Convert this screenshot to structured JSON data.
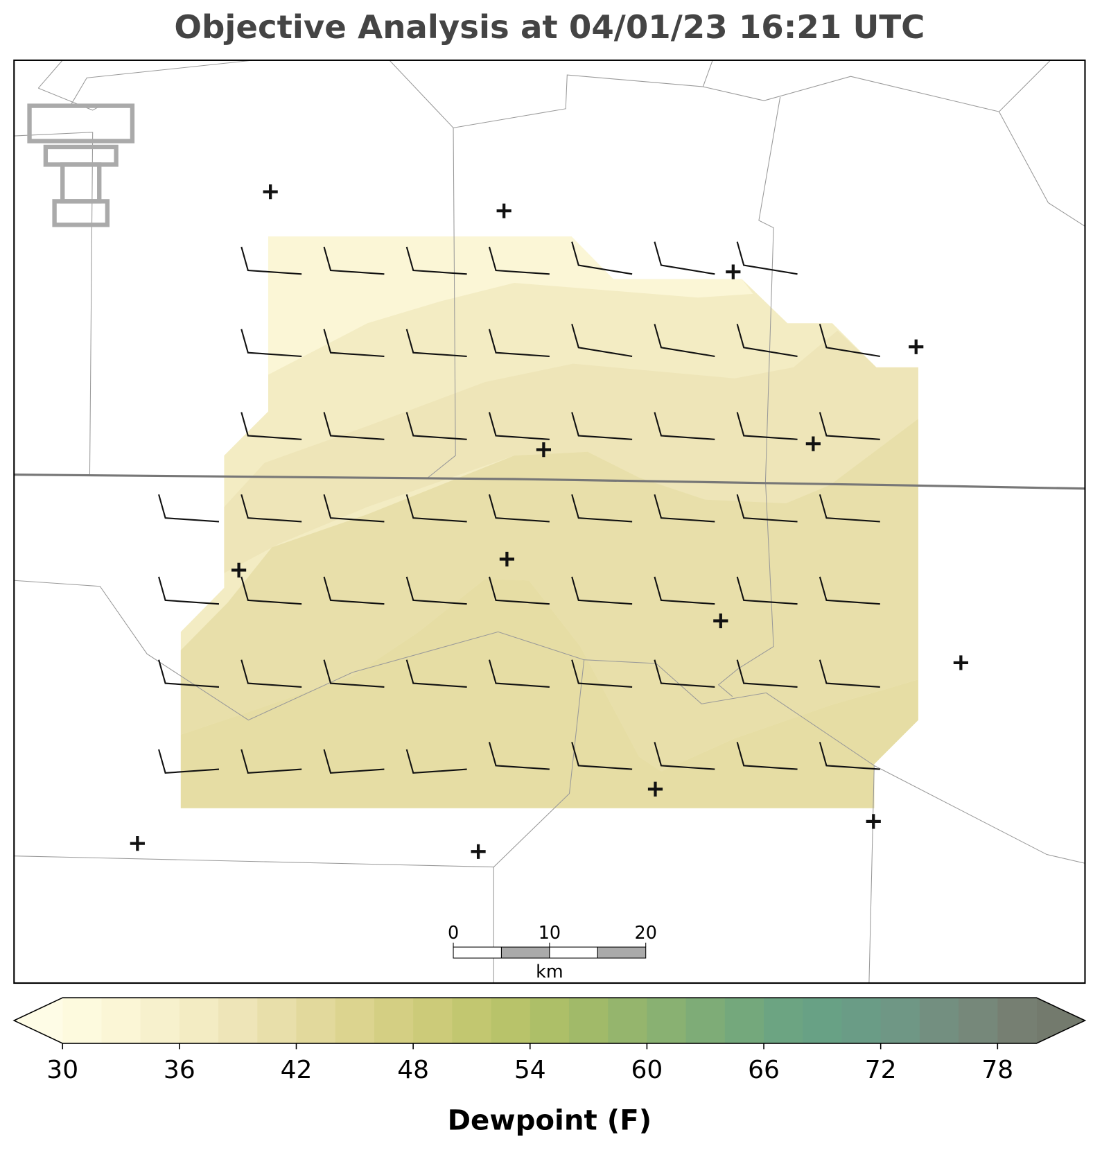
{
  "title": "Objective Analysis at 04/01/23 16:21 UTC",
  "colorbar": {
    "label": "Dewpoint (F)",
    "lim": [
      30,
      80
    ],
    "ticks": [
      30,
      36,
      42,
      48,
      54,
      60,
      66,
      72,
      78
    ],
    "under_color": "#fefce6",
    "over_color": "#737a6d",
    "colors": [
      "#fdfade",
      "#fbf6d6",
      "#f7f1cd",
      "#f3ecc3",
      "#eee5b8",
      "#e8dfaa",
      "#e2d99c",
      "#dcd48f",
      "#d4cf83",
      "#cccb79",
      "#c2c770",
      "#b8c36a",
      "#adbf68",
      "#a1ba69",
      "#95b56d",
      "#89b172",
      "#7eac77",
      "#74a87c",
      "#6ca482",
      "#68a185",
      "#6a9c86",
      "#6f9785",
      "#738f80",
      "#76887a",
      "#767f72"
    ]
  },
  "scale_bar": {
    "ticks": [
      0,
      10,
      20
    ],
    "unit": "km"
  }
}
